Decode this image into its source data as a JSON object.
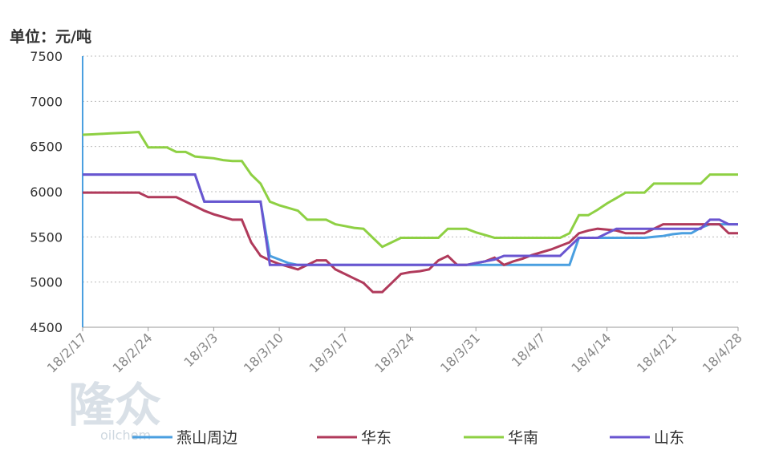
{
  "chart_data": {
    "type": "line",
    "y_label": "单位：元/吨",
    "watermark": [
      "隆众",
      "oilchem"
    ],
    "categories": [
      "18/2/17",
      null,
      null,
      null,
      null,
      null,
      null,
      "18/2/24",
      null,
      null,
      null,
      null,
      null,
      null,
      "18/3/3",
      null,
      null,
      null,
      null,
      null,
      null,
      "18/3/10",
      null,
      null,
      null,
      null,
      null,
      null,
      "18/3/17",
      null,
      null,
      null,
      null,
      null,
      null,
      "18/3/24",
      null,
      null,
      null,
      null,
      null,
      null,
      "18/3/31",
      null,
      null,
      null,
      null,
      null,
      null,
      "18/4/7",
      null,
      null,
      null,
      null,
      null,
      null,
      "18/4/14",
      null,
      null,
      null,
      null,
      null,
      null,
      "18/4/21",
      null,
      null,
      null,
      null,
      null,
      null,
      "18/4/28"
    ],
    "ylim": [
      4500,
      7500
    ],
    "yticks": [
      4500,
      5000,
      5500,
      6000,
      6500,
      7000,
      7500
    ],
    "grid": true,
    "series": [
      {
        "name": "燕山周边",
        "color": "#4a9fe0",
        "values": [
          6190,
          6190,
          6190,
          6190,
          6190,
          6190,
          6190,
          6190,
          6190,
          6190,
          6190,
          6190,
          6190,
          5890,
          5890,
          5890,
          5890,
          5890,
          5890,
          5890,
          5290,
          5250,
          5210,
          5190,
          5190,
          5190,
          5190,
          5190,
          5190,
          5190,
          5190,
          5190,
          5190,
          5190,
          5190,
          5190,
          5190,
          5190,
          5190,
          5190,
          5190,
          5190,
          5190,
          5190,
          5190,
          5190,
          5190,
          5190,
          5190,
          5190,
          5190,
          5190,
          5190,
          5490,
          5490,
          5490,
          5490,
          5490,
          5490,
          5490,
          5490,
          5500,
          5510,
          5530,
          5540,
          5540,
          5600,
          5640,
          5640,
          5640,
          5640
        ]
      },
      {
        "name": "华东",
        "color": "#b03a5b",
        "values": [
          5990,
          5990,
          5990,
          5990,
          5990,
          5990,
          5990,
          5940,
          5940,
          5940,
          5940,
          5890,
          5840,
          5790,
          5750,
          5720,
          5690,
          5690,
          5440,
          5290,
          5240,
          5200,
          5170,
          5140,
          5190,
          5240,
          5240,
          5140,
          5090,
          5040,
          4990,
          4890,
          4890,
          4990,
          5090,
          5110,
          5120,
          5140,
          5240,
          5290,
          5190,
          5190,
          5210,
          5230,
          5270,
          5190,
          5230,
          5260,
          5300,
          5330,
          5360,
          5400,
          5440,
          5540,
          5570,
          5590,
          5580,
          5570,
          5540,
          5540,
          5540,
          5590,
          5640,
          5640,
          5640,
          5640,
          5640,
          5640,
          5640,
          5540,
          5540
        ]
      },
      {
        "name": "华南",
        "color": "#8ed043",
        "values": [
          6630,
          6635,
          6640,
          6645,
          6650,
          6655,
          6660,
          6490,
          6490,
          6490,
          6440,
          6440,
          6390,
          6380,
          6370,
          6350,
          6340,
          6340,
          6190,
          6090,
          5890,
          5850,
          5820,
          5790,
          5690,
          5690,
          5690,
          5640,
          5620,
          5600,
          5590,
          5490,
          5390,
          5440,
          5490,
          5490,
          5490,
          5490,
          5490,
          5590,
          5590,
          5590,
          5550,
          5520,
          5490,
          5490,
          5490,
          5490,
          5490,
          5490,
          5490,
          5490,
          5540,
          5740,
          5740,
          5800,
          5870,
          5930,
          5990,
          5990,
          5990,
          6090,
          6090,
          6090,
          6090,
          6090,
          6090,
          6190,
          6190,
          6190,
          6190
        ]
      },
      {
        "name": "山东",
        "color": "#6a55d0",
        "values": [
          6190,
          6190,
          6190,
          6190,
          6190,
          6190,
          6190,
          6190,
          6190,
          6190,
          6190,
          6190,
          6190,
          5890,
          5890,
          5890,
          5890,
          5890,
          5890,
          5890,
          5190,
          5190,
          5190,
          5190,
          5190,
          5190,
          5190,
          5190,
          5190,
          5190,
          5190,
          5190,
          5190,
          5190,
          5190,
          5190,
          5190,
          5190,
          5190,
          5190,
          5190,
          5190,
          5210,
          5230,
          5250,
          5290,
          5290,
          5290,
          5290,
          5290,
          5290,
          5290,
          5390,
          5490,
          5490,
          5490,
          5540,
          5590,
          5590,
          5590,
          5590,
          5590,
          5590,
          5590,
          5590,
          5590,
          5590,
          5690,
          5690,
          5640,
          5640
        ]
      }
    ]
  }
}
